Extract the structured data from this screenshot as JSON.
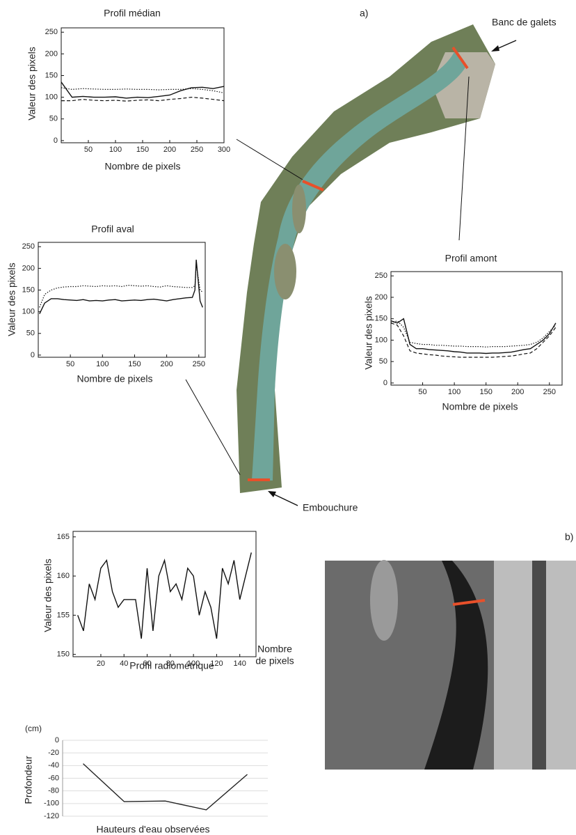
{
  "labels": {
    "part_a": "a)",
    "part_b": "b)",
    "banc": "Banc de galets",
    "embouchure": "Embouchure"
  },
  "chart_data": [
    {
      "type": "line",
      "title": "Profil médian",
      "x_label": "Nombre de pixels",
      "y_label": "Valeur des pixels",
      "x": [
        0,
        20,
        40,
        60,
        80,
        100,
        120,
        140,
        160,
        180,
        200,
        220,
        240,
        260,
        280,
        300
      ],
      "series": [
        {
          "color": "#111",
          "style": "solid",
          "values": [
            135,
            100,
            102,
            100,
            100,
            101,
            98,
            100,
            99,
            102,
            105,
            115,
            122,
            123,
            120,
            125
          ]
        },
        {
          "color": "#111",
          "style": "dotted",
          "values": [
            122,
            118,
            120,
            119,
            118,
            118,
            119,
            118,
            118,
            117,
            118,
            118,
            120,
            118,
            115,
            110
          ]
        },
        {
          "color": "#111",
          "style": "dashed",
          "values": [
            92,
            92,
            95,
            93,
            92,
            93,
            91,
            93,
            94,
            92,
            95,
            97,
            100,
            98,
            95,
            92
          ]
        }
      ],
      "xlim": [
        0,
        300
      ],
      "xticks": [
        50,
        100,
        150,
        200,
        250,
        300
      ],
      "ylim": [
        -5,
        260
      ],
      "yticks": [
        0,
        50,
        100,
        150,
        200,
        250
      ]
    },
    {
      "type": "line",
      "title": "Profil aval",
      "x_label": "Nombre de pixels",
      "y_label": "Valeur des pixels",
      "x": [
        2,
        10,
        20,
        30,
        40,
        50,
        60,
        70,
        80,
        90,
        100,
        110,
        120,
        130,
        140,
        150,
        160,
        170,
        180,
        190,
        200,
        210,
        220,
        230,
        240,
        244,
        246,
        252,
        256
      ],
      "series": [
        {
          "color": "#111",
          "style": "dotted",
          "values": [
            110,
            140,
            150,
            155,
            157,
            158,
            158,
            160,
            159,
            158,
            160,
            159,
            160,
            158,
            161,
            160,
            159,
            160,
            158,
            157,
            160,
            158,
            157,
            156,
            156,
            160,
            210,
            150,
            145
          ]
        },
        {
          "color": "#111",
          "style": "solid",
          "values": [
            95,
            120,
            130,
            130,
            128,
            127,
            126,
            128,
            125,
            126,
            125,
            127,
            128,
            125,
            126,
            127,
            126,
            128,
            129,
            127,
            125,
            128,
            130,
            132,
            133,
            150,
            220,
            125,
            110
          ]
        }
      ],
      "xlim": [
        0,
        260
      ],
      "xticks": [
        50,
        100,
        150,
        200,
        250
      ],
      "ylim": [
        -5,
        260
      ],
      "yticks": [
        0,
        50,
        100,
        150,
        200,
        250
      ]
    },
    {
      "type": "line",
      "title": "Profil amont",
      "x_label": "Nombre de pixels",
      "y_label": "Valeur des pixels",
      "x": [
        0,
        10,
        20,
        30,
        40,
        50,
        60,
        70,
        80,
        90,
        100,
        110,
        120,
        130,
        140,
        150,
        160,
        170,
        180,
        190,
        200,
        210,
        220,
        230,
        240,
        250,
        260
      ],
      "series": [
        {
          "color": "#111",
          "style": "dotted",
          "values": [
            140,
            145,
            130,
            95,
            92,
            90,
            90,
            88,
            88,
            87,
            86,
            86,
            85,
            85,
            85,
            84,
            85,
            85,
            85,
            86,
            87,
            88,
            90,
            95,
            105,
            120,
            135
          ]
        },
        {
          "color": "#111",
          "style": "solid",
          "values": [
            145,
            140,
            150,
            90,
            80,
            80,
            78,
            77,
            76,
            75,
            73,
            72,
            70,
            70,
            70,
            69,
            70,
            70,
            71,
            72,
            75,
            78,
            80,
            90,
            100,
            115,
            140
          ]
        },
        {
          "color": "#111",
          "style": "dashed",
          "values": [
            140,
            135,
            110,
            75,
            70,
            68,
            66,
            65,
            63,
            62,
            61,
            60,
            60,
            60,
            60,
            60,
            60,
            61,
            62,
            63,
            65,
            68,
            70,
            80,
            95,
            110,
            130
          ]
        }
      ],
      "xlim": [
        0,
        270
      ],
      "xticks": [
        50,
        100,
        150,
        200,
        250
      ],
      "ylim": [
        -5,
        260
      ],
      "yticks": [
        0,
        50,
        100,
        150,
        200,
        250
      ]
    },
    {
      "type": "line",
      "title": "Profil radiométrique",
      "x_label": [
        "Nombre",
        "de pixels"
      ],
      "y_label": "Valeur des pixels",
      "x": [
        0,
        5,
        10,
        15,
        20,
        25,
        30,
        35,
        40,
        45,
        50,
        55,
        60,
        65,
        70,
        75,
        80,
        85,
        90,
        95,
        100,
        105,
        110,
        115,
        120,
        125,
        130,
        135,
        140,
        145,
        150
      ],
      "series": [
        {
          "color": "#111",
          "style": "solid",
          "values": [
            155,
            153,
            159,
            157,
            161,
            162,
            158,
            156,
            157,
            157,
            157,
            152,
            161,
            153,
            160,
            162,
            158,
            159,
            157,
            161,
            160,
            155,
            158,
            156,
            152,
            161,
            159,
            162,
            157,
            160,
            163
          ]
        }
      ],
      "xlim": [
        -4,
        154
      ],
      "xticks": [
        20,
        40,
        60,
        80,
        100,
        120,
        140
      ],
      "ylim": [
        149.7,
        165.7
      ],
      "yticks": [
        150,
        155,
        160,
        165
      ]
    },
    {
      "type": "line",
      "title": "Hauteurs d'eau observées",
      "y_label": "Profondeur",
      "y_unit": "(cm)",
      "categories": [
        null,
        null,
        null,
        null,
        null
      ],
      "series": [
        {
          "color": "#222",
          "style": "solid",
          "values": [
            -37,
            -97,
            -96,
            -110,
            -54
          ]
        }
      ],
      "ylim": [
        -120,
        0
      ],
      "yticks": [
        0,
        -20,
        -40,
        -60,
        -80,
        -100,
        -120
      ],
      "grid": true
    }
  ]
}
